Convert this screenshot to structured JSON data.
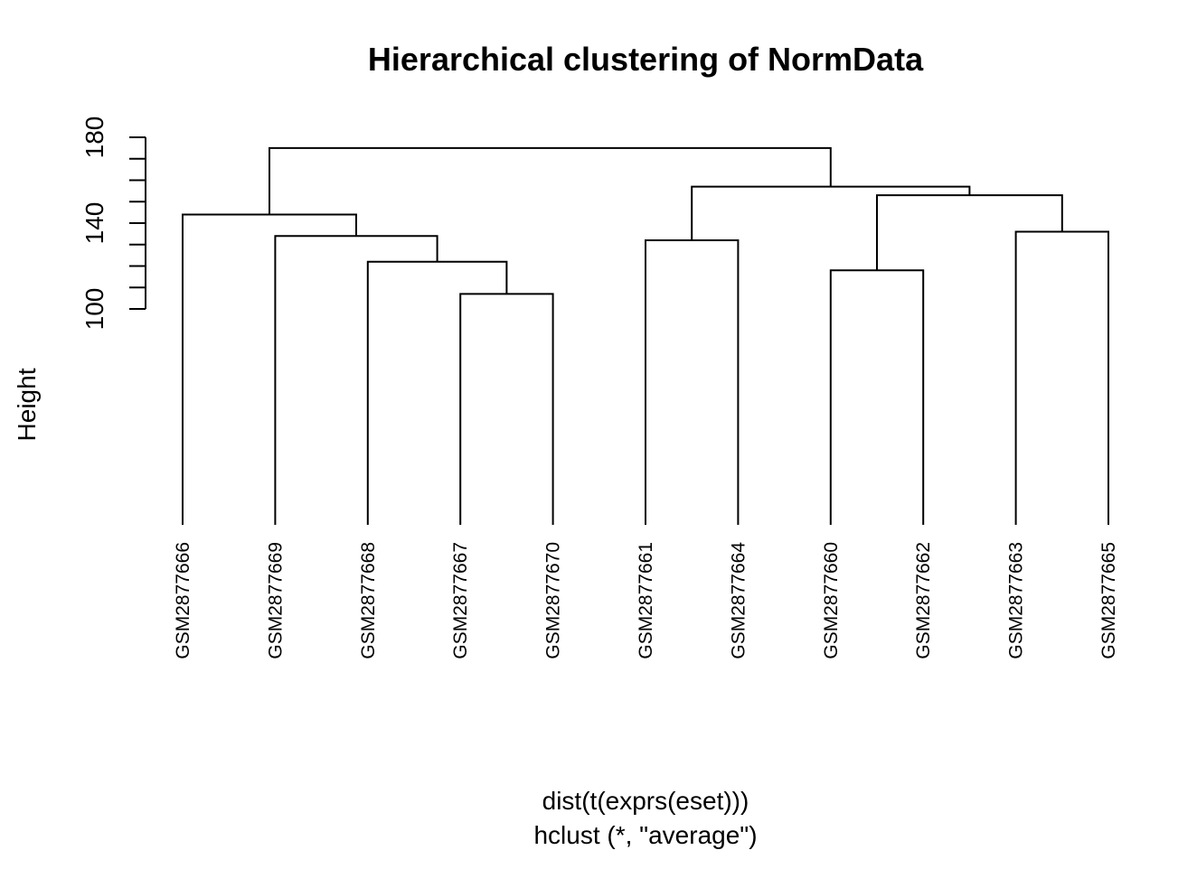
{
  "chart_data": {
    "type": "dendrogram",
    "title": "Hierarchical clustering of NormData",
    "ylabel": "Height",
    "xlabel": "dist(t(exprs(eset)))",
    "sublabel": "hclust (*, \"average\")",
    "y_ticks": [
      100,
      120,
      140,
      160,
      180
    ],
    "y_tick_labels": [
      "100",
      "140",
      "180"
    ],
    "leaves": [
      "GSM2877666",
      "GSM2877669",
      "GSM2877668",
      "GSM2877667",
      "GSM2877670",
      "GSM2877661",
      "GSM2877664",
      "GSM2877660",
      "GSM2877662",
      "GSM2877663",
      "GSM2877665"
    ],
    "merges": [
      {
        "left": "GSM2877667",
        "right": "GSM2877670",
        "height": 107
      },
      {
        "left": "GSM2877660",
        "right": "GSM2877662",
        "height": 118
      },
      {
        "left": "GSM2877668",
        "right": "m1",
        "height": 122
      },
      {
        "left": "GSM2877661",
        "right": "GSM2877664",
        "height": 132
      },
      {
        "left": "GSM2877669",
        "right": "m3",
        "height": 134
      },
      {
        "left": "GSM2877663",
        "right": "GSM2877665",
        "height": 136
      },
      {
        "left": "GSM2877666",
        "right": "m5",
        "height": 144
      },
      {
        "left": "m2",
        "right": "m6",
        "height": 153
      },
      {
        "left": "m4",
        "right": "m8",
        "height": 157
      },
      {
        "left": "m7",
        "right": "m9",
        "height": 175
      }
    ]
  }
}
